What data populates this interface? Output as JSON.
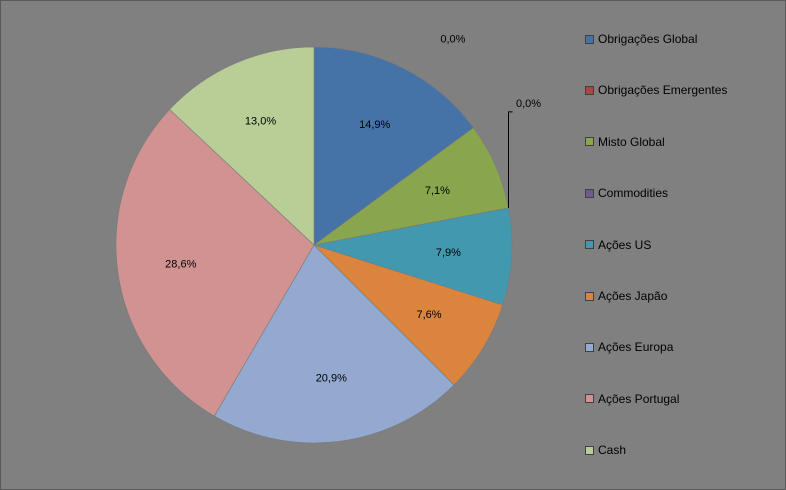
{
  "chart_data": {
    "type": "pie",
    "legend_position": "right",
    "slices": [
      {
        "label": "Obrigações Global",
        "value": 14.9,
        "value_label": "14,9%",
        "color": "#4572A7"
      },
      {
        "label": "Obrigações Emergentes",
        "value": 0.0,
        "value_label": "0,0%",
        "color": "#AA4643"
      },
      {
        "label": "Misto Global",
        "value": 7.1,
        "value_label": "7,1%",
        "color": "#89A54E"
      },
      {
        "label": "Commodities",
        "value": 0.0,
        "value_label": "0,0%",
        "color": "#71588F"
      },
      {
        "label": "Ações US",
        "value": 7.9,
        "value_label": "7,9%",
        "color": "#4198AF"
      },
      {
        "label": "Ações Japão",
        "value": 7.6,
        "value_label": "7,6%",
        "color": "#DB843D"
      },
      {
        "label": "Ações Europa",
        "value": 20.9,
        "value_label": "20,9%",
        "color": "#93A9CF"
      },
      {
        "label": "Ações Portugal",
        "value": 28.6,
        "value_label": "28,6%",
        "color": "#D19392"
      },
      {
        "label": "Cash",
        "value": 13.0,
        "value_label": "13,0%",
        "color": "#B9CD96"
      }
    ]
  }
}
